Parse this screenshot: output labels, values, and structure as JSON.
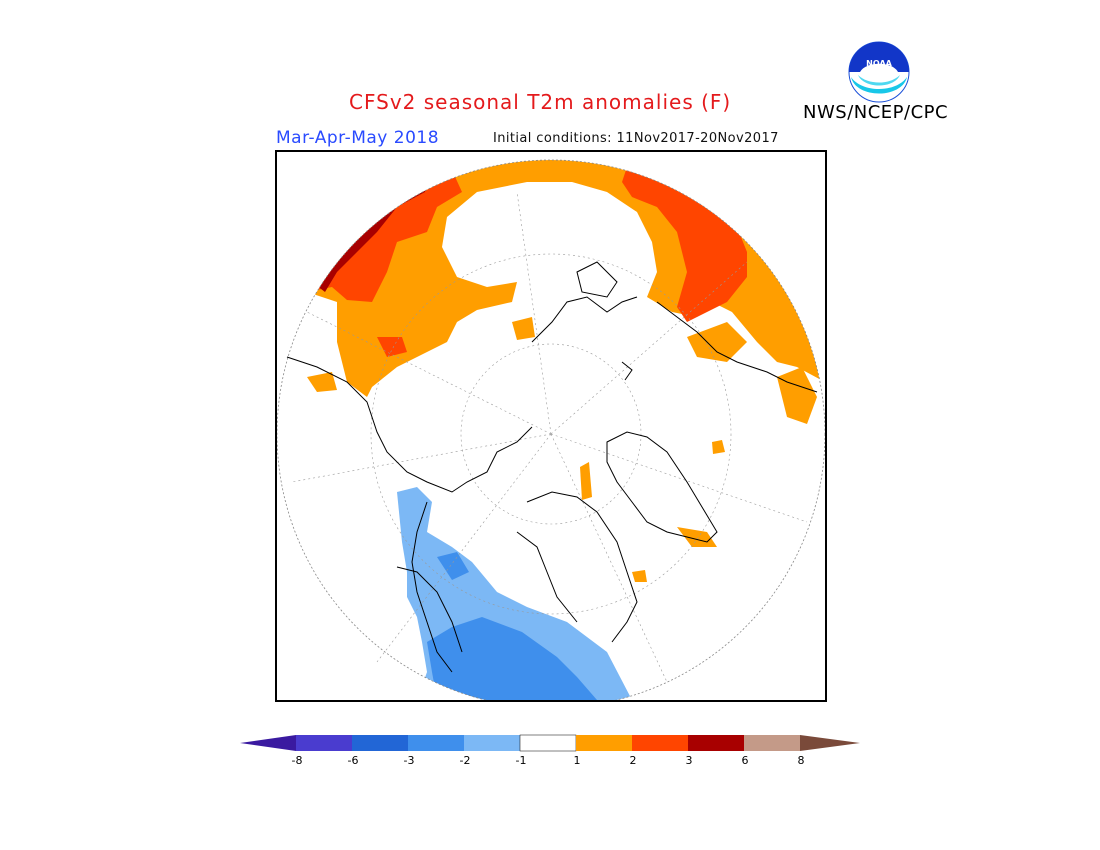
{
  "header": {
    "title": "CFSv2 seasonal T2m anomalies (F)",
    "season": "Mar-Apr-May 2018",
    "initial_conditions": "Initial conditions: 11Nov2017-20Nov2017",
    "agency": "NWS/NCEP/CPC",
    "logo_text": "NOAA"
  },
  "legend": {
    "colors": [
      "#3a1aa0",
      "#4a3ccf",
      "#2266d6",
      "#3f8fec",
      "#7cb8f5",
      "#ffffff",
      "#ff9e00",
      "#ff4500",
      "#a80000",
      "#c49a88",
      "#7a4a3a"
    ],
    "bins": [
      {
        "label": "-8",
        "color": "#4a3ccf"
      },
      {
        "label": "-6",
        "color": "#2266d6"
      },
      {
        "label": "-3",
        "color": "#3f8fec"
      },
      {
        "label": "-2",
        "color": "#7cb8f5"
      },
      {
        "label": "-1",
        "color": "#ffffff"
      },
      {
        "label": "1",
        "color": "#ff9e00"
      },
      {
        "label": "2",
        "color": "#ff4500"
      },
      {
        "label": "3",
        "color": "#a80000"
      },
      {
        "label": "6",
        "color": "#c49a88"
      },
      {
        "label": "8",
        "color": ""
      }
    ]
  },
  "map": {
    "projection": "north polar stereographic",
    "regions": {
      "warm_light": "#ff9e00",
      "warm_mid": "#ff4500",
      "warm_dark": "#a80000",
      "cool_light": "#7cb8f5",
      "cool_mid": "#3f8fec"
    }
  }
}
